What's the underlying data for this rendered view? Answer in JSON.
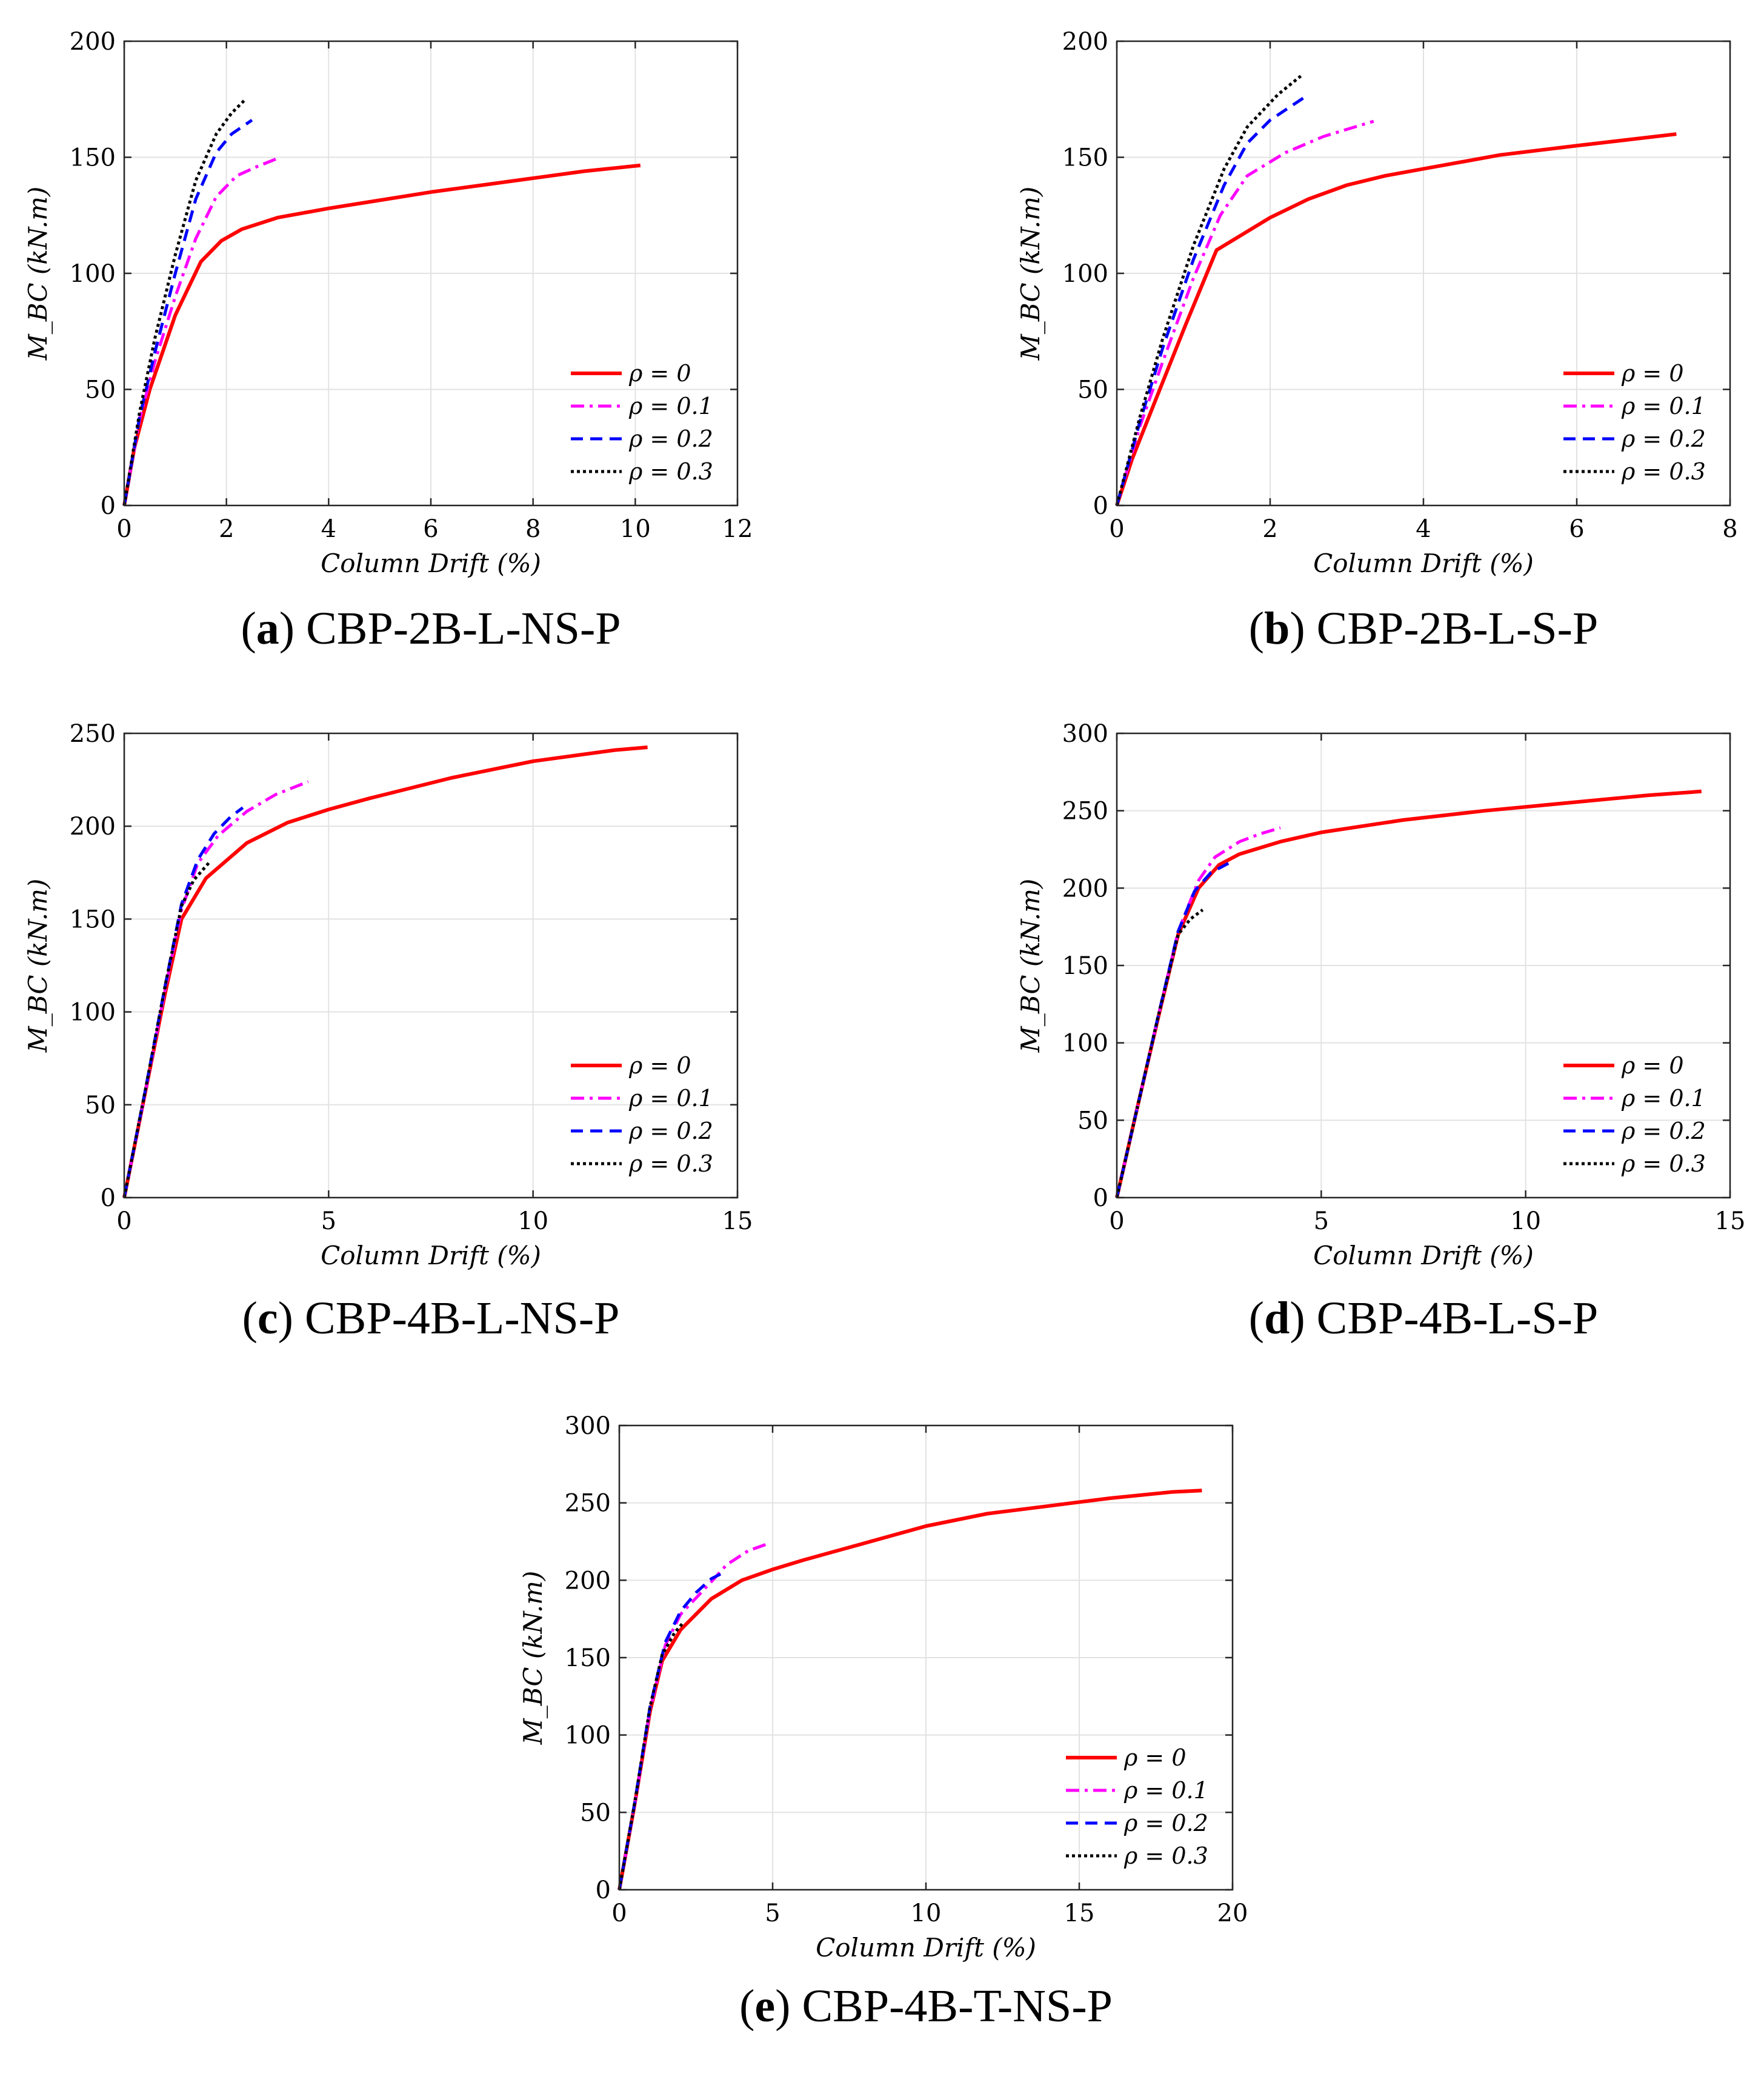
{
  "colors": {
    "rho0": "#ff0000",
    "rho01": "#ff00ff",
    "rho02": "#0000ff",
    "rho03": "#000000",
    "grid": "#e2e2e2",
    "axis": "#262626"
  },
  "chart_data": [
    {
      "id": "a",
      "type": "line",
      "caption_letter": "a",
      "caption_text": "CBP-2B-L-NS-P",
      "xlabel": "Column Drift (%)",
      "ylabel": "M_BC (kN.m)",
      "xlim": [
        0,
        12
      ],
      "ylim": [
        0,
        200
      ],
      "xticks": [
        0,
        2,
        4,
        6,
        8,
        10,
        12
      ],
      "yticks": [
        0,
        50,
        100,
        150,
        200
      ],
      "grid": true,
      "legend_position": "bottom-right",
      "series": [
        {
          "name": "ρ = 0",
          "style": "solid",
          "points": [
            [
              0,
              0
            ],
            [
              0.2,
              25
            ],
            [
              0.5,
              50
            ],
            [
              1.0,
              82
            ],
            [
              1.5,
              105
            ],
            [
              1.9,
              114
            ],
            [
              2.3,
              119
            ],
            [
              3,
              124
            ],
            [
              4,
              128
            ],
            [
              5,
              131.5
            ],
            [
              6,
              135
            ],
            [
              7,
              138
            ],
            [
              8,
              141
            ],
            [
              9,
              144
            ],
            [
              10.1,
              146.5
            ]
          ]
        },
        {
          "name": "ρ = 0.1",
          "style": "dashdot",
          "points": [
            [
              0,
              0
            ],
            [
              0.3,
              37
            ],
            [
              0.6,
              62
            ],
            [
              1.0,
              90
            ],
            [
              1.4,
              115
            ],
            [
              1.8,
              133
            ],
            [
              2.2,
              142
            ],
            [
              2.6,
              146
            ],
            [
              3.0,
              149.5
            ]
          ]
        },
        {
          "name": "ρ = 0.2",
          "style": "dashed",
          "points": [
            [
              0,
              0
            ],
            [
              0.3,
              38
            ],
            [
              0.6,
              66
            ],
            [
              1.0,
              100
            ],
            [
              1.4,
              132
            ],
            [
              1.8,
              152
            ],
            [
              2.1,
              160
            ],
            [
              2.5,
              166
            ]
          ]
        },
        {
          "name": "ρ = 0.3",
          "style": "dotted",
          "points": [
            [
              0,
              0
            ],
            [
              0.3,
              40
            ],
            [
              0.6,
              72
            ],
            [
              1.0,
              108
            ],
            [
              1.4,
              140
            ],
            [
              1.8,
              160
            ],
            [
              2.1,
              169
            ],
            [
              2.35,
              174.5
            ]
          ]
        }
      ]
    },
    {
      "id": "b",
      "type": "line",
      "caption_letter": "b",
      "caption_text": "CBP-2B-L-S-P",
      "xlabel": "Column Drift (%)",
      "ylabel": "M_BC (kN.m)",
      "xlim": [
        0,
        8
      ],
      "ylim": [
        0,
        200
      ],
      "xticks": [
        0,
        2,
        4,
        6,
        8
      ],
      "yticks": [
        0,
        50,
        100,
        150,
        200
      ],
      "grid": true,
      "legend_position": "bottom-right",
      "series": [
        {
          "name": "ρ = 0",
          "style": "solid",
          "points": [
            [
              0,
              0
            ],
            [
              0.2,
              20
            ],
            [
              0.5,
              45
            ],
            [
              0.9,
              78
            ],
            [
              1.3,
              110
            ],
            [
              2,
              124
            ],
            [
              2.5,
              132
            ],
            [
              3,
              138
            ],
            [
              3.5,
              142
            ],
            [
              4,
              145
            ],
            [
              5,
              151
            ],
            [
              6,
              155
            ],
            [
              7.3,
              160
            ]
          ]
        },
        {
          "name": "ρ = 0.1",
          "style": "dashdot",
          "points": [
            [
              0,
              0
            ],
            [
              0.3,
              34
            ],
            [
              0.6,
              62
            ],
            [
              1.0,
              98
            ],
            [
              1.35,
              125
            ],
            [
              1.7,
              142
            ],
            [
              2.2,
              152
            ],
            [
              2.7,
              159
            ],
            [
              3.35,
              165.5
            ]
          ]
        },
        {
          "name": "ρ = 0.2",
          "style": "dashed",
          "points": [
            [
              0,
              0
            ],
            [
              0.3,
              36
            ],
            [
              0.6,
              68
            ],
            [
              1.0,
              106
            ],
            [
              1.4,
              138
            ],
            [
              1.7,
              156
            ],
            [
              2.0,
              166
            ],
            [
              2.5,
              177
            ]
          ]
        },
        {
          "name": "ρ = 0.3",
          "style": "dotted",
          "points": [
            [
              0,
              0
            ],
            [
              0.3,
              38
            ],
            [
              0.6,
              72
            ],
            [
              1.0,
              112
            ],
            [
              1.4,
              145
            ],
            [
              1.7,
              163
            ],
            [
              2.1,
              177
            ],
            [
              2.4,
              185
            ]
          ]
        }
      ]
    },
    {
      "id": "c",
      "type": "line",
      "caption_letter": "c",
      "caption_text": "CBP-4B-L-NS-P",
      "xlabel": "Column Drift (%)",
      "ylabel": "M_BC (kN.m)",
      "xlim": [
        0,
        15
      ],
      "ylim": [
        0,
        250
      ],
      "xticks": [
        0,
        5,
        10,
        15
      ],
      "yticks": [
        0,
        50,
        100,
        150,
        200,
        250
      ],
      "grid": true,
      "legend_position": "bottom-right",
      "series": [
        {
          "name": "ρ = 0",
          "style": "solid",
          "points": [
            [
              0,
              0
            ],
            [
              0.5,
              55
            ],
            [
              1.0,
              110
            ],
            [
              1.4,
              150
            ],
            [
              2,
              172
            ],
            [
              3,
              191
            ],
            [
              4,
              202
            ],
            [
              5,
              209
            ],
            [
              6,
              215
            ],
            [
              8,
              226
            ],
            [
              10,
              235
            ],
            [
              12,
              241
            ],
            [
              12.8,
              242.5
            ]
          ]
        },
        {
          "name": "ρ = 0.1",
          "style": "dashdot",
          "points": [
            [
              0,
              0
            ],
            [
              0.5,
              55
            ],
            [
              1.0,
              112
            ],
            [
              1.4,
              155
            ],
            [
              1.8,
              180
            ],
            [
              2.3,
              195
            ],
            [
              3,
              208
            ],
            [
              3.7,
              217
            ],
            [
              4.5,
              224
            ]
          ]
        },
        {
          "name": "ρ = 0.2",
          "style": "dashed",
          "points": [
            [
              0,
              0
            ],
            [
              0.5,
              56
            ],
            [
              1.0,
              114
            ],
            [
              1.4,
              158
            ],
            [
              1.8,
              182
            ],
            [
              2.2,
              196
            ],
            [
              2.6,
              205
            ],
            [
              2.9,
              210
            ]
          ]
        },
        {
          "name": "ρ = 0.3",
          "style": "dotted",
          "points": [
            [
              0,
              0
            ],
            [
              0.5,
              56
            ],
            [
              1.0,
              114
            ],
            [
              1.4,
              157
            ],
            [
              1.7,
              171
            ],
            [
              2.1,
              181
            ]
          ]
        }
      ]
    },
    {
      "id": "d",
      "type": "line",
      "caption_letter": "d",
      "caption_text": "CBP-4B-L-S-P",
      "xlabel": "Column Drift (%)",
      "ylabel": "M_BC (kN.m)",
      "xlim": [
        0,
        15
      ],
      "ylim": [
        0,
        300
      ],
      "xticks": [
        0,
        5,
        10,
        15
      ],
      "yticks": [
        0,
        50,
        100,
        150,
        200,
        250,
        300
      ],
      "grid": true,
      "legend_position": "bottom-right",
      "series": [
        {
          "name": "ρ = 0",
          "style": "solid",
          "points": [
            [
              0,
              0
            ],
            [
              0.5,
              58
            ],
            [
              1.0,
              115
            ],
            [
              1.5,
              170
            ],
            [
              2,
              200
            ],
            [
              2.5,
              215
            ],
            [
              3,
              222
            ],
            [
              4,
              230
            ],
            [
              5,
              236
            ],
            [
              7,
              244
            ],
            [
              9,
              250
            ],
            [
              11,
              255
            ],
            [
              13,
              260
            ],
            [
              14.3,
              262.5
            ]
          ]
        },
        {
          "name": "ρ = 0.1",
          "style": "dashdot",
          "points": [
            [
              0,
              0
            ],
            [
              0.5,
              58
            ],
            [
              1.0,
              116
            ],
            [
              1.5,
              172
            ],
            [
              2,
              205
            ],
            [
              2.4,
              220
            ],
            [
              3,
              230
            ],
            [
              3.5,
              235
            ],
            [
              4,
              239
            ]
          ]
        },
        {
          "name": "ρ = 0.2",
          "style": "dashed",
          "points": [
            [
              0,
              0
            ],
            [
              0.5,
              58
            ],
            [
              1.0,
              116
            ],
            [
              1.5,
              172
            ],
            [
              1.9,
              198
            ],
            [
              2.3,
              210
            ],
            [
              2.8,
              217
            ]
          ]
        },
        {
          "name": "ρ = 0.3",
          "style": "dotted",
          "points": [
            [
              0,
              0
            ],
            [
              0.5,
              58
            ],
            [
              1.0,
              116
            ],
            [
              1.5,
              170
            ],
            [
              1.8,
              180
            ],
            [
              2.1,
              186
            ]
          ]
        }
      ]
    },
    {
      "id": "e",
      "type": "line",
      "caption_letter": "e",
      "caption_text": "CBP-4B-T-NS-P",
      "xlabel": "Column Drift (%)",
      "ylabel": "M_BC (kN.m)",
      "xlim": [
        0,
        20
      ],
      "ylim": [
        0,
        300
      ],
      "xticks": [
        0,
        5,
        10,
        15,
        20
      ],
      "yticks": [
        0,
        50,
        100,
        150,
        200,
        250,
        300
      ],
      "grid": true,
      "legend_position": "bottom-right",
      "series": [
        {
          "name": "ρ = 0",
          "style": "solid",
          "points": [
            [
              0,
              0
            ],
            [
              0.5,
              55
            ],
            [
              1.0,
              115
            ],
            [
              1.4,
              148
            ],
            [
              2,
              168
            ],
            [
              3,
              188
            ],
            [
              4,
              200
            ],
            [
              5,
              207
            ],
            [
              6,
              213
            ],
            [
              8,
              224
            ],
            [
              10,
              235
            ],
            [
              12,
              243
            ],
            [
              14,
              248
            ],
            [
              16,
              253
            ],
            [
              18,
              257
            ],
            [
              19,
              258
            ]
          ]
        },
        {
          "name": "ρ = 0.1",
          "style": "dashdot",
          "points": [
            [
              0,
              0
            ],
            [
              0.5,
              55
            ],
            [
              1.0,
              116
            ],
            [
              1.5,
              158
            ],
            [
              2,
              178
            ],
            [
              3,
              199
            ],
            [
              3.5,
              210
            ],
            [
              4.2,
              219
            ],
            [
              4.9,
              224
            ]
          ]
        },
        {
          "name": "ρ = 0.2",
          "style": "dashed",
          "points": [
            [
              0,
              0
            ],
            [
              0.5,
              56
            ],
            [
              1.0,
              118
            ],
            [
              1.5,
              160
            ],
            [
              2,
              180
            ],
            [
              2.5,
              192
            ],
            [
              3,
              201
            ],
            [
              3.3,
              204
            ]
          ]
        },
        {
          "name": "ρ = 0.3",
          "style": "dotted",
          "points": [
            [
              0,
              0
            ],
            [
              0.5,
              56
            ],
            [
              1.0,
              118
            ],
            [
              1.4,
              152
            ],
            [
              1.8,
              166
            ],
            [
              2.1,
              173
            ]
          ]
        }
      ]
    }
  ]
}
